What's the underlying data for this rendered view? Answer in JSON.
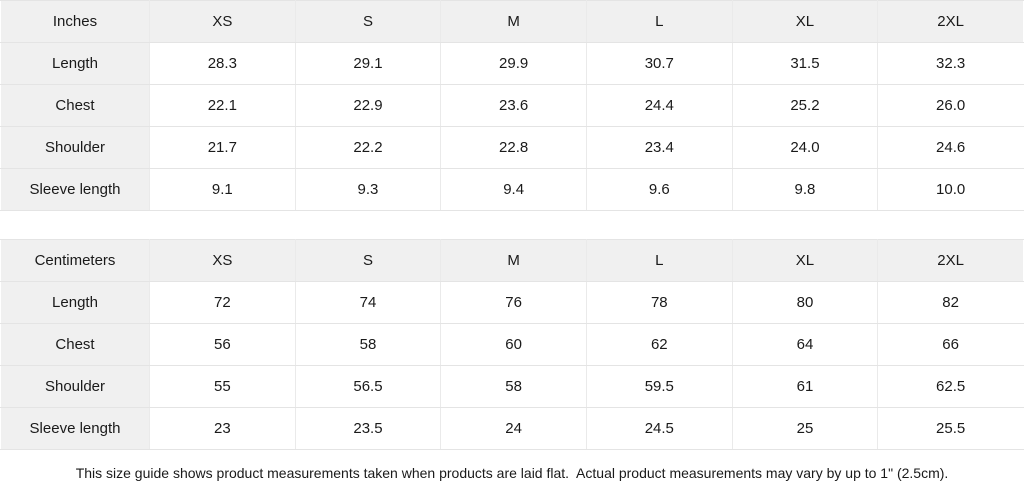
{
  "colors": {
    "header_bg": "#f0f0f0",
    "border_color": "#e4e4e4",
    "border_v_color": "#eaeaea",
    "text_color": "#1a1a1a"
  },
  "tables": [
    {
      "id": "inches",
      "unit_label": "Inches",
      "sizes": [
        "XS",
        "S",
        "M",
        "L",
        "XL",
        "2XL"
      ],
      "rows": [
        {
          "label": "Length",
          "values": [
            "28.3",
            "29.1",
            "29.9",
            "30.7",
            "31.5",
            "32.3"
          ]
        },
        {
          "label": "Chest",
          "values": [
            "22.1",
            "22.9",
            "23.6",
            "24.4",
            "25.2",
            "26.0"
          ]
        },
        {
          "label": "Shoulder",
          "values": [
            "21.7",
            "22.2",
            "22.8",
            "23.4",
            "24.0",
            "24.6"
          ]
        },
        {
          "label": "Sleeve length",
          "values": [
            "9.1",
            "9.3",
            "9.4",
            "9.6",
            "9.8",
            "10.0"
          ]
        }
      ]
    },
    {
      "id": "centimeters",
      "unit_label": "Centimeters",
      "sizes": [
        "XS",
        "S",
        "M",
        "L",
        "XL",
        "2XL"
      ],
      "rows": [
        {
          "label": "Length",
          "values": [
            "72",
            "74",
            "76",
            "78",
            "80",
            "82"
          ]
        },
        {
          "label": "Chest",
          "values": [
            "56",
            "58",
            "60",
            "62",
            "64",
            "66"
          ]
        },
        {
          "label": "Shoulder",
          "values": [
            "55",
            "56.5",
            "58",
            "59.5",
            "61",
            "62.5"
          ]
        },
        {
          "label": "Sleeve length",
          "values": [
            "23",
            "23.5",
            "24",
            "24.5",
            "25",
            "25.5"
          ]
        }
      ]
    }
  ],
  "footer_note": "This size guide shows product measurements taken when products are laid flat.  Actual product measurements may vary by up to 1\" (2.5cm)."
}
